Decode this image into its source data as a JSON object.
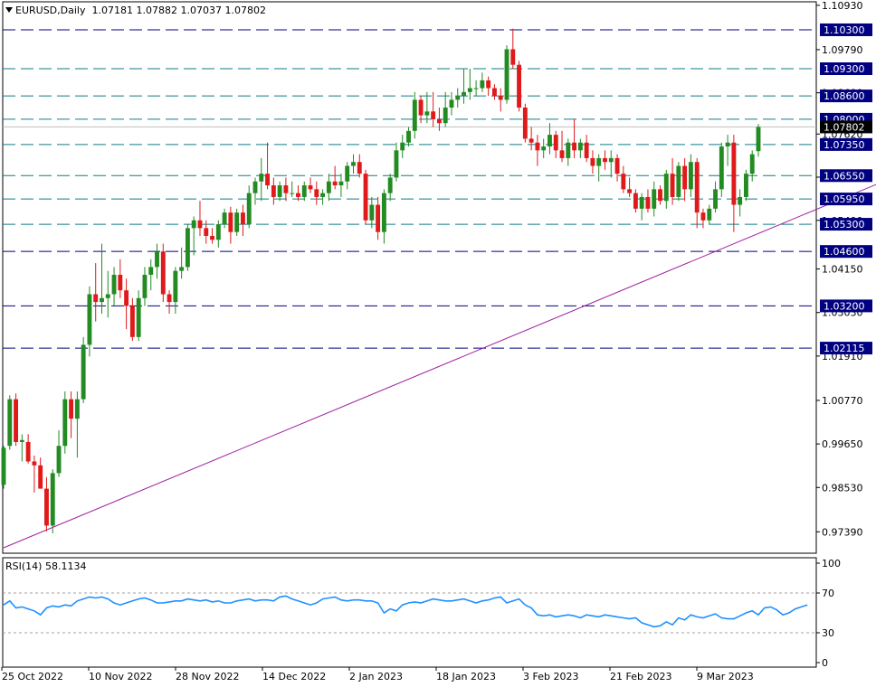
{
  "header": {
    "symbol": "EURUSD,Daily",
    "open": "1.07181",
    "high": "1.07882",
    "low": "1.07037",
    "close": "1.07802"
  },
  "rsi_header": {
    "label": "RSI(14)",
    "value": "58.1134"
  },
  "colors": {
    "bull": "#228B22",
    "bear": "#E0191B",
    "level_navy": "#000080",
    "level_teal": "#0E7C86",
    "trendline": "#A020A0",
    "rsi_line": "#1E90FF",
    "current_price_bg": "#000000"
  },
  "chart_data": [
    {
      "type": "candlestick",
      "title": "EURUSD,Daily",
      "ylim": [
        0.9684,
        1.1102
      ],
      "price_ticks": [
        "1.10930",
        "1.09790",
        "1.08680",
        "1.07620",
        "1.06510",
        "1.05400",
        "1.04150",
        "1.03030",
        "1.01910",
        "1.00770",
        "0.99650",
        "0.98530",
        "0.97390"
      ],
      "x_labels": [
        "25 Oct 2022",
        "10 Nov 2022",
        "28 Nov 2022",
        "14 Dec 2022",
        "2 Jan 2023",
        "18 Jan 2023",
        "3 Feb 2023",
        "21 Feb 2023",
        "9 Mar 2023"
      ],
      "levels": [
        {
          "label": "1.10300",
          "value": 1.103,
          "style": "navy"
        },
        {
          "label": "1.09300",
          "value": 1.093,
          "style": "teal"
        },
        {
          "label": "1.08600",
          "value": 1.086,
          "style": "teal"
        },
        {
          "label": "1.08000",
          "value": 1.08,
          "style": "teal"
        },
        {
          "label": "1.07350",
          "value": 1.0735,
          "style": "teal"
        },
        {
          "label": "1.06550",
          "value": 1.0655,
          "style": "teal"
        },
        {
          "label": "1.05950",
          "value": 1.0595,
          "style": "teal"
        },
        {
          "label": "1.05300",
          "value": 1.053,
          "style": "teal"
        },
        {
          "label": "1.04600",
          "value": 1.046,
          "style": "navy"
        },
        {
          "label": "1.03200",
          "value": 1.032,
          "style": "navy"
        },
        {
          "label": "1.02115",
          "value": 1.02115,
          "style": "navy"
        }
      ],
      "current_price": {
        "label": "1.07802",
        "value": 1.07802
      },
      "trendline": {
        "from_index": 0,
        "from_price": 0.9698,
        "to_index": 149,
        "to_price": 1.0677
      },
      "candles": [
        {
          "o": 0.986,
          "h": 0.996,
          "l": 0.985,
          "c": 0.9955
        },
        {
          "o": 0.996,
          "h": 1.009,
          "l": 0.995,
          "c": 1.008
        },
        {
          "o": 1.008,
          "h": 1.0095,
          "l": 0.996,
          "c": 0.997
        },
        {
          "o": 0.997,
          "h": 0.999,
          "l": 0.992,
          "c": 0.9975
        },
        {
          "o": 0.997,
          "h": 0.999,
          "l": 0.9915,
          "c": 0.992
        },
        {
          "o": 0.992,
          "h": 0.9935,
          "l": 0.984,
          "c": 0.991
        },
        {
          "o": 0.991,
          "h": 0.993,
          "l": 0.985,
          "c": 0.985
        },
        {
          "o": 0.985,
          "h": 0.988,
          "l": 0.974,
          "c": 0.9755
        },
        {
          "o": 0.9755,
          "h": 0.99,
          "l": 0.9735,
          "c": 0.989
        },
        {
          "o": 0.989,
          "h": 1.0,
          "l": 0.988,
          "c": 0.996
        },
        {
          "o": 0.996,
          "h": 1.01,
          "l": 0.994,
          "c": 1.008
        },
        {
          "o": 1.008,
          "h": 1.01,
          "l": 0.998,
          "c": 1.003
        },
        {
          "o": 1.003,
          "h": 1.01,
          "l": 0.993,
          "c": 1.008
        },
        {
          "o": 1.008,
          "h": 1.024,
          "l": 1.007,
          "c": 1.022
        },
        {
          "o": 1.022,
          "h": 1.037,
          "l": 1.019,
          "c": 1.035
        },
        {
          "o": 1.035,
          "h": 1.043,
          "l": 1.028,
          "c": 1.033
        },
        {
          "o": 1.033,
          "h": 1.048,
          "l": 1.03,
          "c": 1.034
        },
        {
          "o": 1.034,
          "h": 1.041,
          "l": 1.029,
          "c": 1.035
        },
        {
          "o": 1.035,
          "h": 1.042,
          "l": 1.032,
          "c": 1.04
        },
        {
          "o": 1.04,
          "h": 1.044,
          "l": 1.034,
          "c": 1.036
        },
        {
          "o": 1.036,
          "h": 1.039,
          "l": 1.026,
          "c": 1.032
        },
        {
          "o": 1.032,
          "h": 1.034,
          "l": 1.023,
          "c": 1.024
        },
        {
          "o": 1.024,
          "h": 1.036,
          "l": 1.023,
          "c": 1.034
        },
        {
          "o": 1.034,
          "h": 1.042,
          "l": 1.032,
          "c": 1.04
        },
        {
          "o": 1.04,
          "h": 1.044,
          "l": 1.036,
          "c": 1.042
        },
        {
          "o": 1.042,
          "h": 1.048,
          "l": 1.039,
          "c": 1.046
        },
        {
          "o": 1.046,
          "h": 1.048,
          "l": 1.033,
          "c": 1.035
        },
        {
          "o": 1.035,
          "h": 1.036,
          "l": 1.03,
          "c": 1.033
        },
        {
          "o": 1.033,
          "h": 1.042,
          "l": 1.03,
          "c": 1.041
        },
        {
          "o": 1.041,
          "h": 1.047,
          "l": 1.039,
          "c": 1.042
        },
        {
          "o": 1.042,
          "h": 1.053,
          "l": 1.041,
          "c": 1.052
        },
        {
          "o": 1.052,
          "h": 1.055,
          "l": 1.045,
          "c": 1.054
        },
        {
          "o": 1.054,
          "h": 1.059,
          "l": 1.05,
          "c": 1.052
        },
        {
          "o": 1.052,
          "h": 1.054,
          "l": 1.048,
          "c": 1.05
        },
        {
          "o": 1.05,
          "h": 1.052,
          "l": 1.048,
          "c": 1.049
        },
        {
          "o": 1.049,
          "h": 1.054,
          "l": 1.047,
          "c": 1.053
        },
        {
          "o": 1.053,
          "h": 1.057,
          "l": 1.052,
          "c": 1.056
        },
        {
          "o": 1.056,
          "h": 1.0575,
          "l": 1.048,
          "c": 1.051
        },
        {
          "o": 1.051,
          "h": 1.057,
          "l": 1.05,
          "c": 1.056
        },
        {
          "o": 1.056,
          "h": 1.058,
          "l": 1.05,
          "c": 1.053
        },
        {
          "o": 1.053,
          "h": 1.063,
          "l": 1.052,
          "c": 1.061
        },
        {
          "o": 1.061,
          "h": 1.065,
          "l": 1.058,
          "c": 1.064
        },
        {
          "o": 1.064,
          "h": 1.07,
          "l": 1.059,
          "c": 1.066
        },
        {
          "o": 1.066,
          "h": 1.074,
          "l": 1.062,
          "c": 1.063
        },
        {
          "o": 1.063,
          "h": 1.065,
          "l": 1.058,
          "c": 1.06
        },
        {
          "o": 1.06,
          "h": 1.064,
          "l": 1.059,
          "c": 1.063
        },
        {
          "o": 1.063,
          "h": 1.065,
          "l": 1.059,
          "c": 1.061
        },
        {
          "o": 1.061,
          "h": 1.064,
          "l": 1.06,
          "c": 1.061
        },
        {
          "o": 1.061,
          "h": 1.063,
          "l": 1.059,
          "c": 1.06
        },
        {
          "o": 1.06,
          "h": 1.064,
          "l": 1.059,
          "c": 1.063
        },
        {
          "o": 1.063,
          "h": 1.065,
          "l": 1.061,
          "c": 1.062
        },
        {
          "o": 1.062,
          "h": 1.064,
          "l": 1.058,
          "c": 1.06
        },
        {
          "o": 1.06,
          "h": 1.062,
          "l": 1.058,
          "c": 1.061
        },
        {
          "o": 1.061,
          "h": 1.066,
          "l": 1.059,
          "c": 1.064
        },
        {
          "o": 1.064,
          "h": 1.068,
          "l": 1.062,
          "c": 1.063
        },
        {
          "o": 1.063,
          "h": 1.066,
          "l": 1.06,
          "c": 1.064
        },
        {
          "o": 1.064,
          "h": 1.069,
          "l": 1.062,
          "c": 1.068
        },
        {
          "o": 1.068,
          "h": 1.071,
          "l": 1.066,
          "c": 1.069
        },
        {
          "o": 1.069,
          "h": 1.071,
          "l": 1.065,
          "c": 1.066
        },
        {
          "o": 1.066,
          "h": 1.067,
          "l": 1.053,
          "c": 1.054
        },
        {
          "o": 1.054,
          "h": 1.06,
          "l": 1.052,
          "c": 1.058
        },
        {
          "o": 1.058,
          "h": 1.06,
          "l": 1.049,
          "c": 1.051
        },
        {
          "o": 1.051,
          "h": 1.062,
          "l": 1.048,
          "c": 1.061
        },
        {
          "o": 1.061,
          "h": 1.066,
          "l": 1.059,
          "c": 1.065
        },
        {
          "o": 1.065,
          "h": 1.074,
          "l": 1.064,
          "c": 1.072
        },
        {
          "o": 1.072,
          "h": 1.076,
          "l": 1.07,
          "c": 1.074
        },
        {
          "o": 1.074,
          "h": 1.078,
          "l": 1.073,
          "c": 1.077
        },
        {
          "o": 1.077,
          "h": 1.087,
          "l": 1.075,
          "c": 1.085
        },
        {
          "o": 1.085,
          "h": 1.086,
          "l": 1.079,
          "c": 1.081
        },
        {
          "o": 1.081,
          "h": 1.087,
          "l": 1.079,
          "c": 1.082
        },
        {
          "o": 1.082,
          "h": 1.087,
          "l": 1.078,
          "c": 1.08
        },
        {
          "o": 1.08,
          "h": 1.083,
          "l": 1.077,
          "c": 1.079
        },
        {
          "o": 1.079,
          "h": 1.087,
          "l": 1.078,
          "c": 1.083
        },
        {
          "o": 1.083,
          "h": 1.087,
          "l": 1.081,
          "c": 1.085
        },
        {
          "o": 1.085,
          "h": 1.088,
          "l": 1.083,
          "c": 1.086
        },
        {
          "o": 1.086,
          "h": 1.093,
          "l": 1.084,
          "c": 1.087
        },
        {
          "o": 1.087,
          "h": 1.093,
          "l": 1.085,
          "c": 1.088
        },
        {
          "o": 1.088,
          "h": 1.09,
          "l": 1.086,
          "c": 1.088
        },
        {
          "o": 1.088,
          "h": 1.092,
          "l": 1.087,
          "c": 1.09
        },
        {
          "o": 1.09,
          "h": 1.091,
          "l": 1.086,
          "c": 1.088
        },
        {
          "o": 1.088,
          "h": 1.089,
          "l": 1.085,
          "c": 1.086
        },
        {
          "o": 1.086,
          "h": 1.088,
          "l": 1.082,
          "c": 1.085
        },
        {
          "o": 1.085,
          "h": 1.099,
          "l": 1.084,
          "c": 1.098
        },
        {
          "o": 1.098,
          "h": 1.1033,
          "l": 1.093,
          "c": 1.094
        },
        {
          "o": 1.094,
          "h": 1.095,
          "l": 1.082,
          "c": 1.083
        },
        {
          "o": 1.083,
          "h": 1.084,
          "l": 1.074,
          "c": 1.075
        },
        {
          "o": 1.075,
          "h": 1.078,
          "l": 1.072,
          "c": 1.074
        },
        {
          "o": 1.074,
          "h": 1.076,
          "l": 1.068,
          "c": 1.072
        },
        {
          "o": 1.072,
          "h": 1.075,
          "l": 1.07,
          "c": 1.073
        },
        {
          "o": 1.073,
          "h": 1.079,
          "l": 1.071,
          "c": 1.076
        },
        {
          "o": 1.076,
          "h": 1.077,
          "l": 1.07,
          "c": 1.072
        },
        {
          "o": 1.072,
          "h": 1.077,
          "l": 1.069,
          "c": 1.07
        },
        {
          "o": 1.07,
          "h": 1.075,
          "l": 1.068,
          "c": 1.074
        },
        {
          "o": 1.074,
          "h": 1.08,
          "l": 1.07,
          "c": 1.072
        },
        {
          "o": 1.072,
          "h": 1.075,
          "l": 1.07,
          "c": 1.074
        },
        {
          "o": 1.074,
          "h": 1.076,
          "l": 1.069,
          "c": 1.07
        },
        {
          "o": 1.07,
          "h": 1.072,
          "l": 1.066,
          "c": 1.068
        },
        {
          "o": 1.068,
          "h": 1.071,
          "l": 1.064,
          "c": 1.07
        },
        {
          "o": 1.07,
          "h": 1.072,
          "l": 1.067,
          "c": 1.069
        },
        {
          "o": 1.069,
          "h": 1.072,
          "l": 1.065,
          "c": 1.07
        },
        {
          "o": 1.07,
          "h": 1.071,
          "l": 1.064,
          "c": 1.066
        },
        {
          "o": 1.066,
          "h": 1.068,
          "l": 1.061,
          "c": 1.062
        },
        {
          "o": 1.062,
          "h": 1.065,
          "l": 1.06,
          "c": 1.061
        },
        {
          "o": 1.061,
          "h": 1.062,
          "l": 1.056,
          "c": 1.057
        },
        {
          "o": 1.057,
          "h": 1.061,
          "l": 1.054,
          "c": 1.06
        },
        {
          "o": 1.06,
          "h": 1.062,
          "l": 1.056,
          "c": 1.057
        },
        {
          "o": 1.057,
          "h": 1.064,
          "l": 1.055,
          "c": 1.062
        },
        {
          "o": 1.062,
          "h": 1.063,
          "l": 1.058,
          "c": 1.059
        },
        {
          "o": 1.059,
          "h": 1.067,
          "l": 1.057,
          "c": 1.066
        },
        {
          "o": 1.066,
          "h": 1.07,
          "l": 1.058,
          "c": 1.06
        },
        {
          "o": 1.06,
          "h": 1.069,
          "l": 1.059,
          "c": 1.068
        },
        {
          "o": 1.068,
          "h": 1.07,
          "l": 1.059,
          "c": 1.062
        },
        {
          "o": 1.062,
          "h": 1.071,
          "l": 1.06,
          "c": 1.069
        },
        {
          "o": 1.069,
          "h": 1.07,
          "l": 1.052,
          "c": 1.056
        },
        {
          "o": 1.056,
          "h": 1.057,
          "l": 1.052,
          "c": 1.054
        },
        {
          "o": 1.054,
          "h": 1.058,
          "l": 1.053,
          "c": 1.057
        },
        {
          "o": 1.057,
          "h": 1.064,
          "l": 1.056,
          "c": 1.062
        },
        {
          "o": 1.062,
          "h": 1.074,
          "l": 1.06,
          "c": 1.073
        },
        {
          "o": 1.073,
          "h": 1.076,
          "l": 1.068,
          "c": 1.074
        },
        {
          "o": 1.074,
          "h": 1.076,
          "l": 1.051,
          "c": 1.058
        },
        {
          "o": 1.058,
          "h": 1.062,
          "l": 1.055,
          "c": 1.06
        },
        {
          "o": 1.06,
          "h": 1.067,
          "l": 1.059,
          "c": 1.066
        },
        {
          "o": 1.066,
          "h": 1.072,
          "l": 1.064,
          "c": 1.071
        },
        {
          "o": 1.0718,
          "h": 1.0788,
          "l": 1.0704,
          "c": 1.07802
        }
      ]
    },
    {
      "type": "line",
      "title": "RSI(14) 58.1134",
      "ylim": [
        0,
        100
      ],
      "y_ticks": [
        "100",
        "70",
        "30",
        "0"
      ],
      "levels": [
        70,
        30
      ],
      "values": [
        58,
        62,
        55,
        56,
        54,
        52,
        48,
        55,
        57,
        56,
        58,
        57,
        62,
        64,
        66,
        65,
        66,
        64,
        60,
        58,
        60,
        62,
        64,
        65,
        63,
        60,
        60,
        61,
        62,
        62,
        64,
        63,
        62,
        63,
        61,
        62,
        60,
        60,
        62,
        63,
        64,
        62,
        63,
        63,
        62,
        66,
        67,
        64,
        62,
        60,
        58,
        60,
        64,
        65,
        66,
        63,
        62,
        63,
        63,
        62,
        62,
        60,
        50,
        54,
        52,
        58,
        60,
        61,
        60,
        62,
        64,
        63,
        62,
        62,
        63,
        64,
        62,
        60,
        62,
        63,
        65,
        66,
        60,
        62,
        64,
        58,
        55,
        48,
        47,
        48,
        46,
        47,
        48,
        47,
        45,
        48,
        47,
        46,
        48,
        47,
        46,
        45,
        44,
        45,
        40,
        38,
        36,
        37,
        41,
        38,
        45,
        43,
        48,
        46,
        45,
        47,
        49,
        45,
        44,
        44,
        47,
        50,
        52,
        48,
        55,
        56,
        53,
        48,
        50,
        54,
        56,
        58
      ]
    }
  ]
}
